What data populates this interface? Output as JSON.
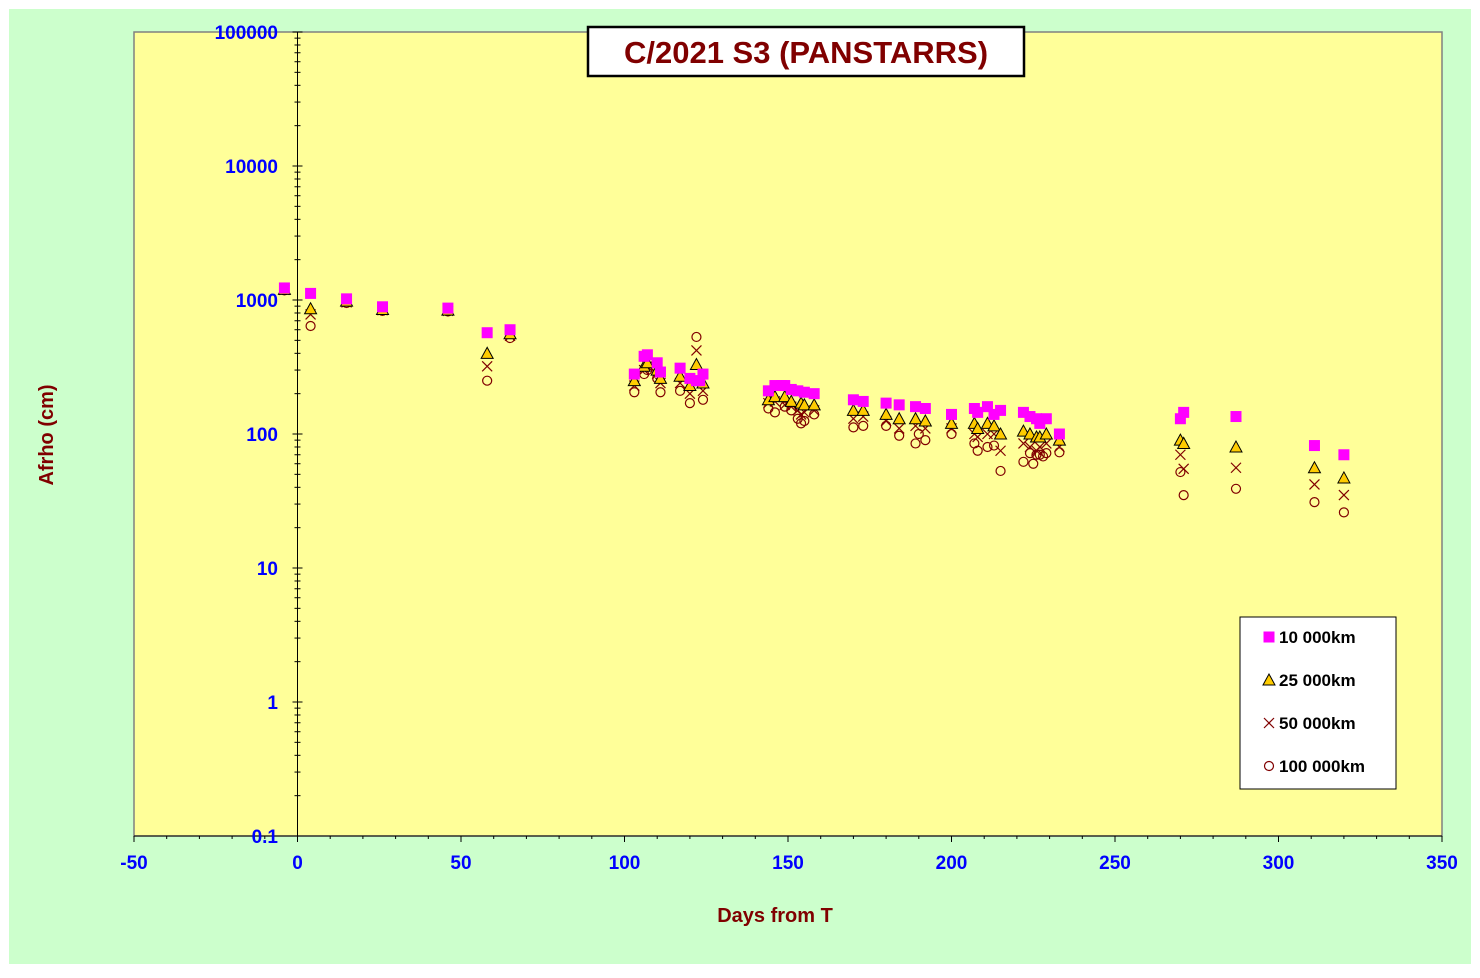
{
  "chart_data": {
    "type": "scatter",
    "title": "C/2021 S3 (PANSTARRS)",
    "xlabel": "Days from T",
    "ylabel": "Afrho (cm)",
    "xlim": [
      -50,
      350
    ],
    "ylim": [
      0.1,
      100000
    ],
    "yscale": "log",
    "x_ticks": [
      -50,
      0,
      50,
      100,
      150,
      200,
      250,
      300,
      350
    ],
    "x_tick_labels": [
      "-50",
      "0",
      "50",
      "100",
      "150",
      "200",
      "250",
      "300",
      "350"
    ],
    "y_ticks": [
      0.1,
      1,
      10,
      100,
      1000,
      10000,
      100000
    ],
    "y_tick_labels": [
      "0.1",
      "1",
      "10",
      "100",
      "1000",
      "10000",
      "100000"
    ],
    "grid": false,
    "legend_position": "bottom-right",
    "colors": {
      "outer_background": "#ccffcc",
      "plot_background": "#ffff99",
      "title_text": "#800000",
      "axis_label_text": "#800000",
      "tick_label_text": "#0000ff",
      "series_10000": "#ff00ff",
      "series_25000": "#ffcc00",
      "series_50000": "#800000",
      "series_100000": "#800000"
    },
    "series": [
      {
        "name": "10 000km",
        "marker": "square",
        "points": [
          [
            -4,
            1230
          ],
          [
            4,
            1120
          ],
          [
            15,
            1020
          ],
          [
            26,
            890
          ],
          [
            46,
            870
          ],
          [
            58,
            570
          ],
          [
            65,
            600
          ],
          [
            103,
            280
          ],
          [
            106,
            380
          ],
          [
            107,
            390
          ],
          [
            110,
            340
          ],
          [
            111,
            290
          ],
          [
            117,
            310
          ],
          [
            120,
            260
          ],
          [
            122,
            250
          ],
          [
            123,
            250
          ],
          [
            124,
            280
          ],
          [
            144,
            210
          ],
          [
            146,
            230
          ],
          [
            148,
            230
          ],
          [
            149,
            230
          ],
          [
            151,
            215
          ],
          [
            153,
            210
          ],
          [
            155,
            205
          ],
          [
            158,
            200
          ],
          [
            170,
            180
          ],
          [
            173,
            175
          ],
          [
            180,
            170
          ],
          [
            184,
            165
          ],
          [
            189,
            160
          ],
          [
            192,
            155
          ],
          [
            200,
            140
          ],
          [
            207,
            155
          ],
          [
            208,
            145
          ],
          [
            211,
            160
          ],
          [
            213,
            140
          ],
          [
            215,
            150
          ],
          [
            222,
            145
          ],
          [
            224,
            135
          ],
          [
            226,
            130
          ],
          [
            227,
            120
          ],
          [
            229,
            130
          ],
          [
            233,
            100
          ],
          [
            270,
            130
          ],
          [
            271,
            145
          ],
          [
            287,
            135
          ],
          [
            311,
            82
          ],
          [
            320,
            70
          ]
        ]
      },
      {
        "name": "25 000km",
        "marker": "triangle",
        "points": [
          [
            -4,
            1200
          ],
          [
            4,
            860
          ],
          [
            15,
            980
          ],
          [
            26,
            850
          ],
          [
            46,
            840
          ],
          [
            58,
            400
          ],
          [
            65,
            560
          ],
          [
            103,
            250
          ],
          [
            106,
            320
          ],
          [
            107,
            340
          ],
          [
            110,
            300
          ],
          [
            111,
            260
          ],
          [
            117,
            270
          ],
          [
            120,
            230
          ],
          [
            122,
            330
          ],
          [
            124,
            240
          ],
          [
            144,
            180
          ],
          [
            146,
            190
          ],
          [
            149,
            190
          ],
          [
            151,
            175
          ],
          [
            154,
            170
          ],
          [
            155,
            165
          ],
          [
            158,
            165
          ],
          [
            170,
            150
          ],
          [
            173,
            150
          ],
          [
            180,
            140
          ],
          [
            184,
            130
          ],
          [
            189,
            130
          ],
          [
            192,
            125
          ],
          [
            200,
            120
          ],
          [
            207,
            120
          ],
          [
            208,
            110
          ],
          [
            211,
            120
          ],
          [
            213,
            115
          ],
          [
            215,
            100
          ],
          [
            222,
            105
          ],
          [
            224,
            100
          ],
          [
            226,
            95
          ],
          [
            227,
            95
          ],
          [
            229,
            100
          ],
          [
            233,
            90
          ],
          [
            270,
            90
          ],
          [
            271,
            85
          ],
          [
            287,
            80
          ],
          [
            311,
            56
          ],
          [
            320,
            47
          ]
        ]
      },
      {
        "name": "50 000km",
        "marker": "x",
        "points": [
          [
            -4,
            1190
          ],
          [
            4,
            780
          ],
          [
            15,
            960
          ],
          [
            26,
            840
          ],
          [
            46,
            830
          ],
          [
            58,
            320
          ],
          [
            65,
            540
          ],
          [
            103,
            230
          ],
          [
            106,
            300
          ],
          [
            107,
            320
          ],
          [
            110,
            280
          ],
          [
            111,
            240
          ],
          [
            117,
            240
          ],
          [
            120,
            200
          ],
          [
            122,
            420
          ],
          [
            124,
            210
          ],
          [
            144,
            170
          ],
          [
            146,
            175
          ],
          [
            149,
            165
          ],
          [
            151,
            160
          ],
          [
            153,
            150
          ],
          [
            154,
            140
          ],
          [
            155,
            145
          ],
          [
            158,
            150
          ],
          [
            170,
            130
          ],
          [
            173,
            135
          ],
          [
            180,
            125
          ],
          [
            184,
            110
          ],
          [
            189,
            115
          ],
          [
            192,
            110
          ],
          [
            200,
            110
          ],
          [
            207,
            100
          ],
          [
            208,
            95
          ],
          [
            211,
            100
          ],
          [
            213,
            100
          ],
          [
            215,
            75
          ],
          [
            222,
            85
          ],
          [
            224,
            80
          ],
          [
            226,
            75
          ],
          [
            227,
            80
          ],
          [
            229,
            85
          ],
          [
            233,
            80
          ],
          [
            270,
            70
          ],
          [
            271,
            55
          ],
          [
            287,
            56
          ],
          [
            311,
            42
          ],
          [
            320,
            35
          ]
        ]
      },
      {
        "name": "100 000km",
        "marker": "circle",
        "points": [
          [
            -4,
            1180
          ],
          [
            4,
            640
          ],
          [
            15,
            950
          ],
          [
            26,
            830
          ],
          [
            46,
            820
          ],
          [
            58,
            250
          ],
          [
            65,
            520
          ],
          [
            103,
            205
          ],
          [
            106,
            280
          ],
          [
            107,
            300
          ],
          [
            110,
            260
          ],
          [
            111,
            205
          ],
          [
            117,
            210
          ],
          [
            120,
            170
          ],
          [
            122,
            530
          ],
          [
            124,
            180
          ],
          [
            144,
            155
          ],
          [
            146,
            145
          ],
          [
            149,
            160
          ],
          [
            151,
            150
          ],
          [
            153,
            130
          ],
          [
            154,
            120
          ],
          [
            155,
            125
          ],
          [
            158,
            140
          ],
          [
            170,
            112
          ],
          [
            173,
            115
          ],
          [
            180,
            115
          ],
          [
            184,
            97
          ],
          [
            189,
            85
          ],
          [
            190,
            100
          ],
          [
            192,
            90
          ],
          [
            200,
            100
          ],
          [
            207,
            85
          ],
          [
            208,
            75
          ],
          [
            211,
            80
          ],
          [
            213,
            82
          ],
          [
            215,
            53
          ],
          [
            222,
            62
          ],
          [
            224,
            72
          ],
          [
            225,
            60
          ],
          [
            226,
            70
          ],
          [
            227,
            70
          ],
          [
            228,
            68
          ],
          [
            229,
            72
          ],
          [
            233,
            73
          ],
          [
            270,
            52
          ],
          [
            271,
            35
          ],
          [
            287,
            39
          ],
          [
            311,
            31
          ],
          [
            320,
            26
          ]
        ]
      }
    ]
  }
}
